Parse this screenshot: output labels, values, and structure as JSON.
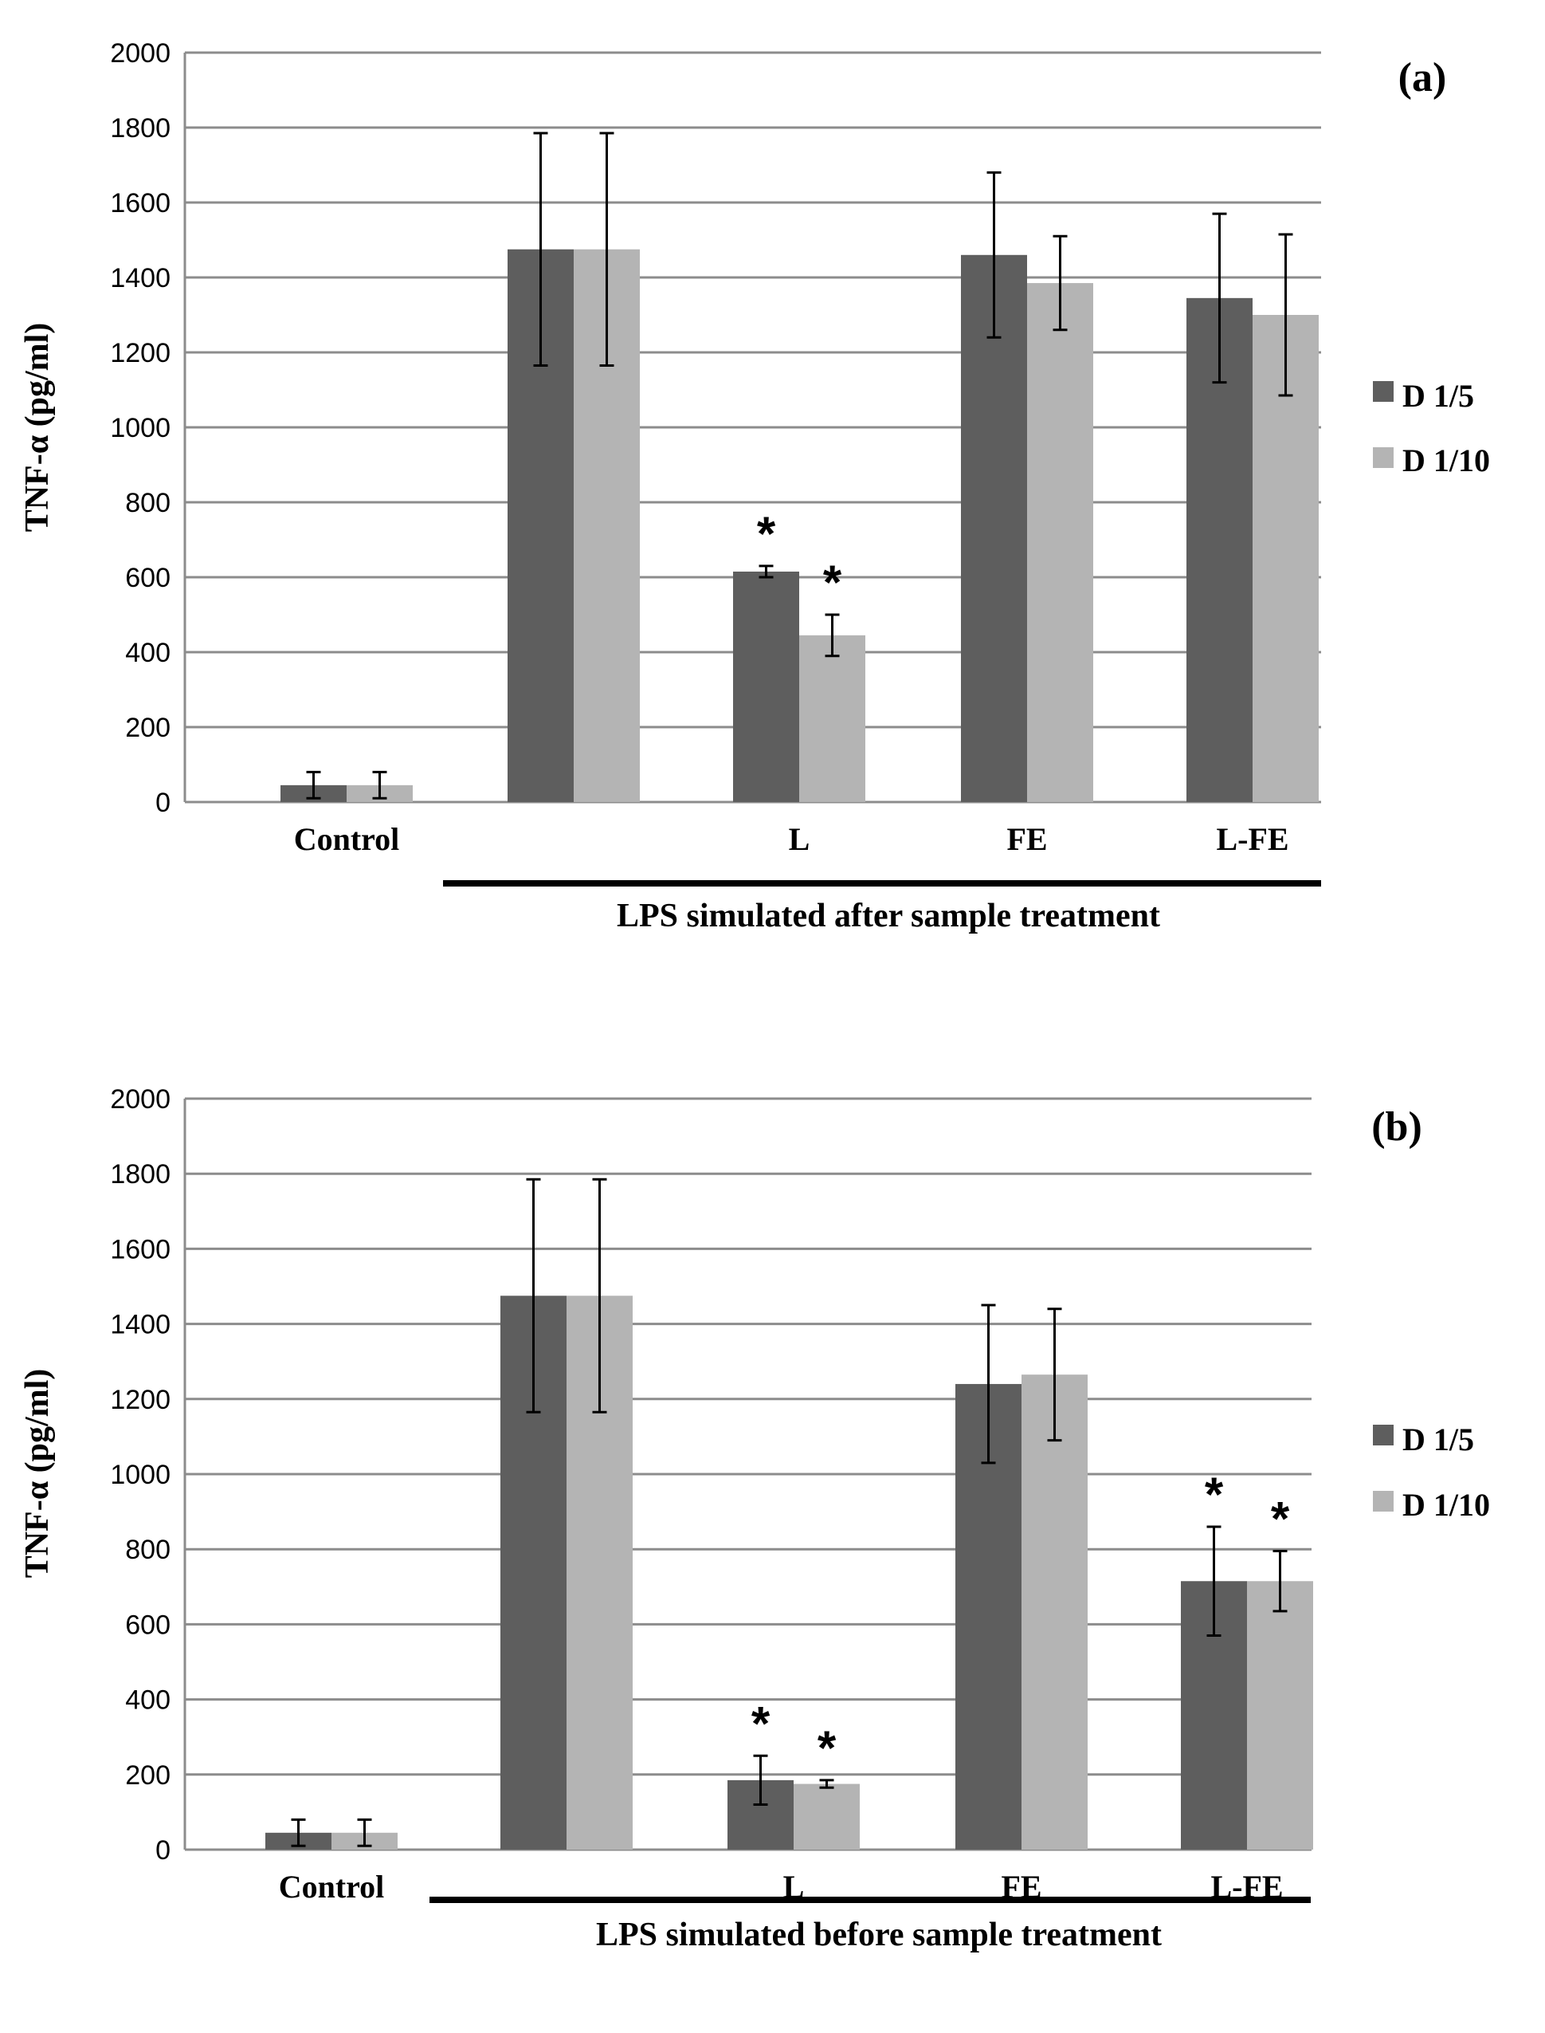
{
  "colors": {
    "series1": "#5e5e5e",
    "series2": "#b4b4b4",
    "grid": "#8c8c8c"
  },
  "chart_data": [
    {
      "type": "bar",
      "panel_label": "(a)",
      "ylabel": "TNF-α (pg/ml)",
      "ylim": [
        0,
        2000
      ],
      "yticks": [
        0,
        200,
        400,
        600,
        800,
        1000,
        1200,
        1400,
        1600,
        1800,
        2000
      ],
      "categories": [
        "Control",
        "",
        "L",
        "FE",
        "L-FE"
      ],
      "series": [
        {
          "name": "D 1/5",
          "values": [
            45,
            1475,
            615,
            1460,
            1345
          ],
          "errors": [
            35,
            310,
            15,
            220,
            225
          ]
        },
        {
          "name": "D 1/10",
          "values": [
            45,
            1475,
            445,
            1385,
            1300
          ],
          "errors": [
            35,
            310,
            55,
            125,
            215
          ]
        }
      ],
      "significance": [
        {
          "category": 2,
          "series": 0,
          "label": "*"
        },
        {
          "category": 2,
          "series": 1,
          "label": "*"
        }
      ],
      "group_label": "LPS simulated after sample treatment",
      "legend_position": "right"
    },
    {
      "type": "bar",
      "panel_label": "(b)",
      "ylabel": "TNF-α (pg/ml)",
      "ylim": [
        0,
        2000
      ],
      "yticks": [
        0,
        200,
        400,
        600,
        800,
        1000,
        1200,
        1400,
        1600,
        1800,
        2000
      ],
      "categories": [
        "Control",
        "",
        "L",
        "FE",
        "L-FE"
      ],
      "series": [
        {
          "name": "D 1/5",
          "values": [
            45,
            1475,
            185,
            1240,
            715
          ],
          "errors": [
            35,
            310,
            65,
            210,
            145
          ]
        },
        {
          "name": "D 1/10",
          "values": [
            45,
            1475,
            175,
            1265,
            715
          ],
          "errors": [
            35,
            310,
            10,
            175,
            80
          ]
        }
      ],
      "significance": [
        {
          "category": 2,
          "series": 0,
          "label": "*"
        },
        {
          "category": 2,
          "series": 1,
          "label": "*"
        },
        {
          "category": 4,
          "series": 0,
          "label": "*"
        },
        {
          "category": 4,
          "series": 1,
          "label": "*"
        }
      ],
      "group_label": "LPS simulated before sample treatment",
      "legend_position": "right"
    }
  ]
}
